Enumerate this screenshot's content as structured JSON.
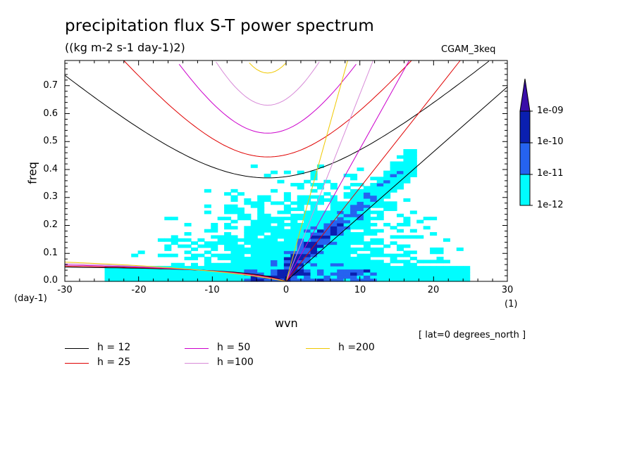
{
  "title": "precipitation flux S-T power spectrum",
  "units": "((kg m-2 s-1 day-1)2)",
  "model": "CGAM_3keq",
  "xlabel": "wvn",
  "xunit_left": "(day-1)",
  "xunit_right": "(1)",
  "ylabel": "freq",
  "lat_note": "[ lat=0 degrees_north ]",
  "x_ticks": [
    "-30",
    "-20",
    "-10",
    "0",
    "10",
    "20",
    "30"
  ],
  "y_ticks": [
    "0.0",
    "0.1",
    "0.2",
    "0.3",
    "0.4",
    "0.5",
    "0.6",
    "0.7"
  ],
  "colorbar": {
    "labels": [
      "1e-09",
      "1e-10",
      "1e-11",
      "1e-12"
    ],
    "colors": [
      "#3a0ea8",
      "#0a1fb0",
      "#2563f0",
      "#00fdfe"
    ]
  },
  "legend": [
    {
      "label": "h = 12",
      "color": "#000000"
    },
    {
      "label": "h = 25",
      "color": "#e00000"
    },
    {
      "label": "h = 50",
      "color": "#cc00cc"
    },
    {
      "label": "h =100",
      "color": "#d88bd8"
    },
    {
      "label": "h =200",
      "color": "#f0c800"
    }
  ],
  "chart_data": {
    "type": "heatmap",
    "title": "precipitation flux S-T power spectrum",
    "units": "((kg m-2 s-1 day-1)2)",
    "xlabel": "wvn",
    "ylabel": "freq",
    "xlim": [
      -30,
      30
    ],
    "ylim": [
      0,
      0.79
    ],
    "contour_levels": [
      1e-12,
      1e-11,
      1e-10,
      1e-09
    ],
    "dispersion_curves": [
      {
        "h": 12,
        "kelvin_slope_per_wvn": 0.02318,
        "ig_min_freq": 0.37
      },
      {
        "h": 25,
        "kelvin_slope_per_wvn": 0.03346,
        "ig_min_freq": 0.445
      },
      {
        "h": 50,
        "kelvin_slope_per_wvn": 0.04732,
        "ig_min_freq": 0.53
      },
      {
        "h": 100,
        "kelvin_slope_per_wvn": 0.06692,
        "ig_min_freq": 0.63
      },
      {
        "h": 200,
        "kelvin_slope_per_wvn": 0.09464,
        "ig_min_freq": 0.745
      }
    ]
  }
}
